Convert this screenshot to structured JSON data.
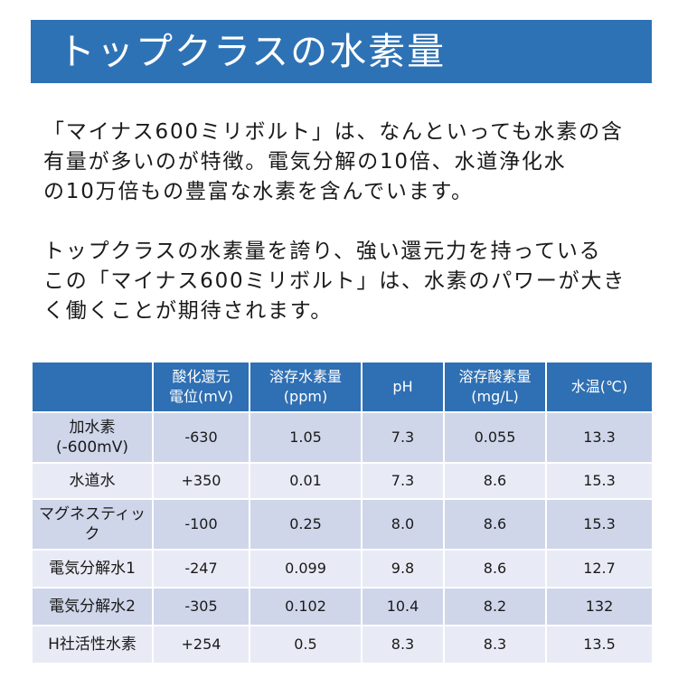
{
  "title": "トップクラスの水素量",
  "paragraphs": [
    {
      "lines": [
        "「マイナス600ミリボルト」は、なんといっても水素の含",
        "有量が多いのが特徴。電気分解の10倍、水道浄化水",
        "の10万倍もの豊富な水素を含んでいます。"
      ]
    },
    {
      "lines": [
        "トップクラスの水素量を誇り、強い還元力を持っている",
        "この「マイナス600ミリボルト」は、水素のパワーが大き",
        "く働くことが期待されます。"
      ]
    }
  ],
  "table": {
    "headers": [
      {
        "line1": "",
        "line2": ""
      },
      {
        "line1": "酸化還元",
        "line2": "電位(mV)"
      },
      {
        "line1": "溶存水素量",
        "line2": "(ppm)"
      },
      {
        "line1": "pH",
        "line2": ""
      },
      {
        "line1": "溶存酸素量",
        "line2": "(mg/L)"
      },
      {
        "line1": "水温(℃)",
        "line2": ""
      }
    ],
    "rows": [
      {
        "label1": "加水素",
        "label2": "(-600mV)",
        "orp": "-630",
        "h2": "1.05",
        "ph": "7.3",
        "o2": "0.055",
        "temp": "13.3"
      },
      {
        "label1": "水道水",
        "label2": "",
        "orp": "+350",
        "h2": "0.01",
        "ph": "7.3",
        "o2": "8.6",
        "temp": "15.3"
      },
      {
        "label1": "マグネスティッ",
        "label2": "ク",
        "orp": "-100",
        "h2": "0.25",
        "ph": "8.0",
        "o2": "8.6",
        "temp": "15.3"
      },
      {
        "label1": "電気分解水1",
        "label2": "",
        "orp": "-247",
        "h2": "0.099",
        "ph": "9.8",
        "o2": "8.6",
        "temp": "12.7"
      },
      {
        "label1": "電気分解水2",
        "label2": "",
        "orp": "-305",
        "h2": "0.102",
        "ph": "10.4",
        "o2": "8.2",
        "temp": "132"
      },
      {
        "label1": "H社活性水素",
        "label2": "",
        "orp": "+254",
        "h2": "0.5",
        "ph": "8.3",
        "o2": "8.3",
        "temp": "13.5"
      }
    ]
  },
  "colors": {
    "banner": "#2e72b6",
    "header_bg": "#2f6fb3",
    "row_dark": "#cfd6ea",
    "row_light": "#e8ebf5"
  }
}
